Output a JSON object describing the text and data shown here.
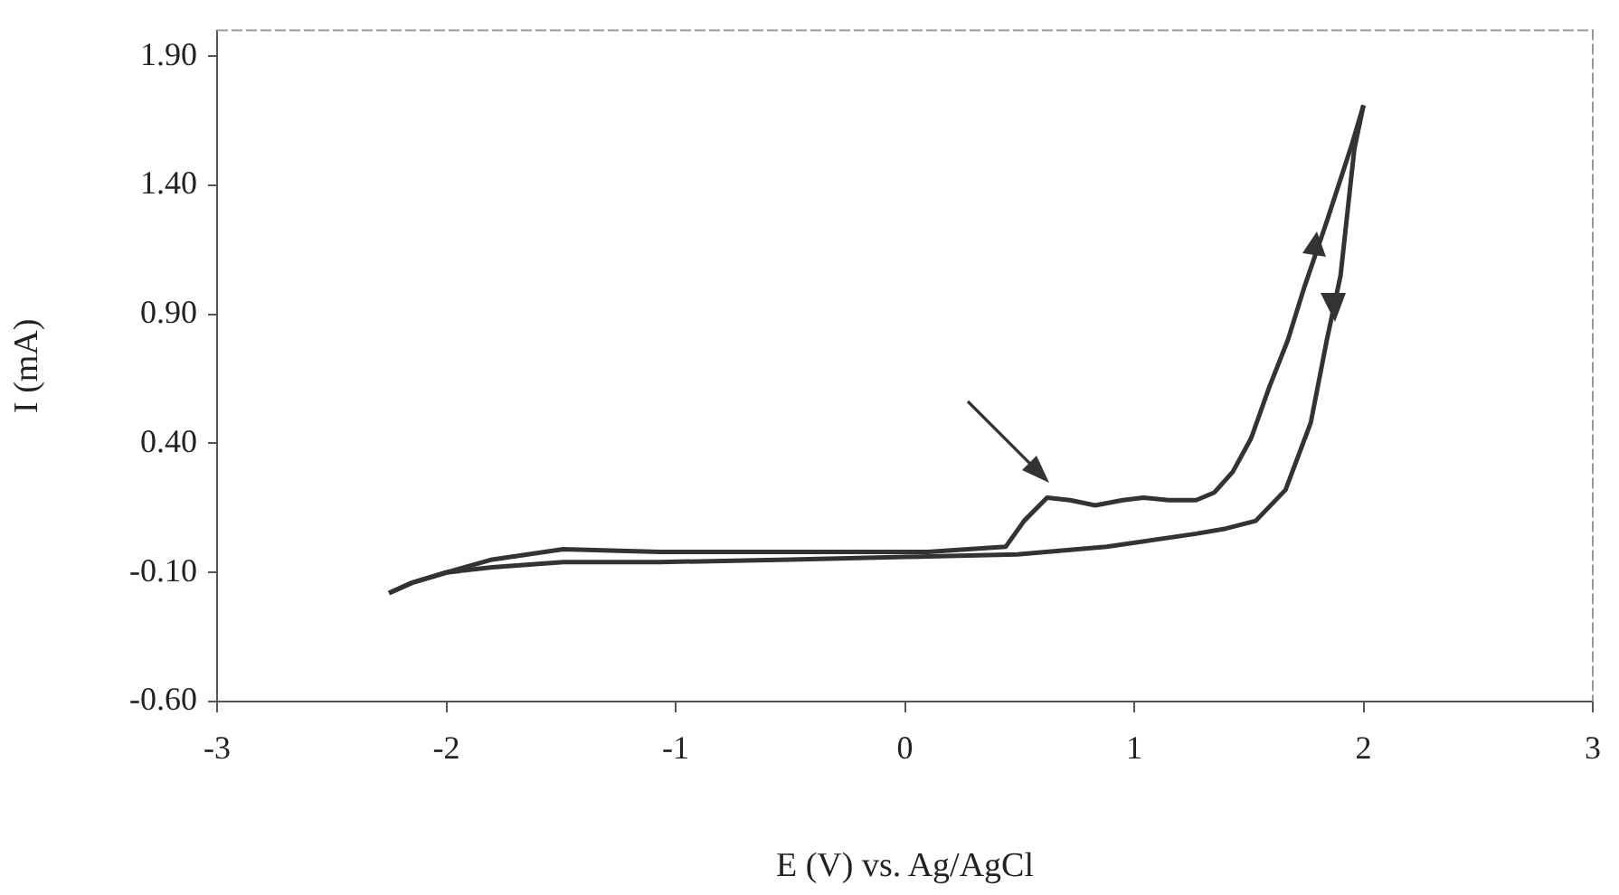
{
  "chart_data": {
    "type": "line",
    "xlabel": "E (V) vs. Ag/AgCl",
    "ylabel": "I (mA)",
    "xlim": [
      -3,
      3
    ],
    "xticks": [
      -3,
      -2,
      -1,
      0,
      1,
      2,
      3
    ],
    "ylim": [
      -0.6,
      2.0
    ],
    "yticks": [
      {
        "value": -0.6,
        "label": "-0.60"
      },
      {
        "value": -0.1,
        "label": "-0.10"
      },
      {
        "value": 0.4,
        "label": "0.40"
      },
      {
        "value": 0.9,
        "label": "0.90"
      },
      {
        "value": 1.4,
        "label": "1.40"
      },
      {
        "value": 1.9,
        "label": "1.90"
      }
    ],
    "grid": false,
    "legend": false,
    "marker": "none",
    "line_style": "solid",
    "series": [
      {
        "color": "#333333",
        "x": [
          -2.25,
          -2.15,
          -2.0,
          -1.8,
          -1.49,
          -1.07,
          -0.29,
          0.1,
          0.44,
          0.52,
          0.62,
          0.72,
          0.83,
          0.95,
          1.04,
          1.15,
          1.27,
          1.35,
          1.43,
          1.51,
          1.59,
          1.67,
          1.74,
          1.84,
          1.95,
          2.0
        ],
        "values": [
          -0.18,
          -0.14,
          -0.1,
          -0.05,
          -0.01,
          -0.02,
          -0.02,
          -0.02,
          0.0,
          0.1,
          0.19,
          0.18,
          0.16,
          0.18,
          0.19,
          0.18,
          0.18,
          0.21,
          0.29,
          0.42,
          0.62,
          0.8,
          1.0,
          1.26,
          1.56,
          1.71
        ]
      },
      {
        "color": "#333333",
        "x": [
          -2.25,
          -2.15,
          -2.0,
          -1.8,
          -1.49,
          -1.07,
          -0.5,
          0.0,
          0.49,
          0.88,
          1.27,
          1.4,
          1.53,
          1.66,
          1.77,
          1.84,
          1.9,
          1.96,
          2.0
        ],
        "values": [
          -0.18,
          -0.14,
          -0.1,
          -0.08,
          -0.06,
          -0.06,
          -0.05,
          -0.04,
          -0.03,
          0.0,
          0.05,
          0.07,
          0.1,
          0.22,
          0.48,
          0.8,
          1.05,
          1.54,
          1.71
        ]
      }
    ]
  }
}
